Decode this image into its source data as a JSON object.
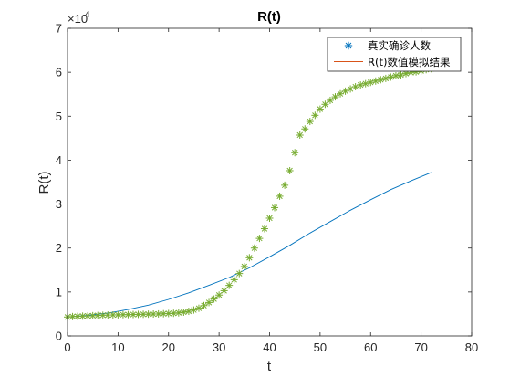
{
  "chart_data": {
    "type": "scatter",
    "title": "R(t)",
    "xlabel": "t",
    "ylabel": "R(t)",
    "xlim": [
      0,
      80
    ],
    "ylim": [
      0,
      70000
    ],
    "xticks": [
      0,
      10,
      20,
      30,
      40,
      50,
      60,
      70,
      80
    ],
    "xtick_labels": [
      "0",
      "10",
      "20",
      "30",
      "40",
      "50",
      "60",
      "70",
      "80"
    ],
    "yticks": [
      0,
      10000,
      20000,
      30000,
      40000,
      50000,
      60000,
      70000
    ],
    "ytick_labels": [
      "0",
      "1",
      "2",
      "3",
      "4",
      "5",
      "6",
      "7"
    ],
    "y_exponent_base": "×10",
    "y_exponent_power": "4",
    "grid": false,
    "legend_position": "top-right",
    "legend": [
      "真实确诊人数",
      "R(t)数值模拟结果"
    ],
    "series": [
      {
        "name": "真实确诊人数",
        "marker": "asterisk",
        "color": "#77ac30",
        "x": [
          0,
          1,
          2,
          3,
          4,
          5,
          6,
          7,
          8,
          9,
          10,
          11,
          12,
          13,
          14,
          15,
          16,
          17,
          18,
          19,
          20,
          21,
          22,
          23,
          24,
          25,
          26,
          27,
          28,
          29,
          30,
          31,
          32,
          33,
          34,
          35,
          36,
          37,
          38,
          39,
          40,
          41,
          42,
          43,
          44,
          45,
          46,
          47,
          48,
          49,
          50,
          51,
          52,
          53,
          54,
          55,
          56,
          57,
          58,
          59,
          60,
          61,
          62,
          63,
          64,
          65,
          66,
          67,
          68,
          69,
          70,
          71,
          72
        ],
        "y": [
          4300,
          4400,
          4450,
          4500,
          4550,
          4600,
          4650,
          4700,
          4750,
          4780,
          4800,
          4830,
          4850,
          4870,
          4900,
          4920,
          4950,
          4980,
          5000,
          5050,
          5100,
          5150,
          5250,
          5400,
          5600,
          5900,
          6300,
          6900,
          7600,
          8400,
          9300,
          10300,
          11500,
          12800,
          14200,
          15800,
          17800,
          20000,
          22200,
          24400,
          26800,
          29200,
          31800,
          34300,
          37600,
          41700,
          45700,
          47100,
          48800,
          50200,
          51600,
          52700,
          53600,
          54400,
          55100,
          55700,
          56200,
          56700,
          57100,
          57400,
          57700,
          58000,
          58300,
          58600,
          58900,
          59200,
          59400,
          59700,
          59900,
          60100,
          60300,
          60600,
          60800
        ]
      },
      {
        "name": "R(t)数值模拟结果",
        "legend_color": "#d95319",
        "color": "#0072bd",
        "x": [
          0,
          4,
          8,
          12,
          16,
          20,
          24,
          28,
          32,
          36,
          40,
          44,
          48,
          52,
          56,
          60,
          64,
          68,
          72
        ],
        "y": [
          4300,
          4700,
          5200,
          6000,
          7000,
          8300,
          9800,
          11500,
          13300,
          15500,
          18000,
          20600,
          23400,
          26000,
          28600,
          31000,
          33300,
          35300,
          37200
        ]
      }
    ]
  }
}
